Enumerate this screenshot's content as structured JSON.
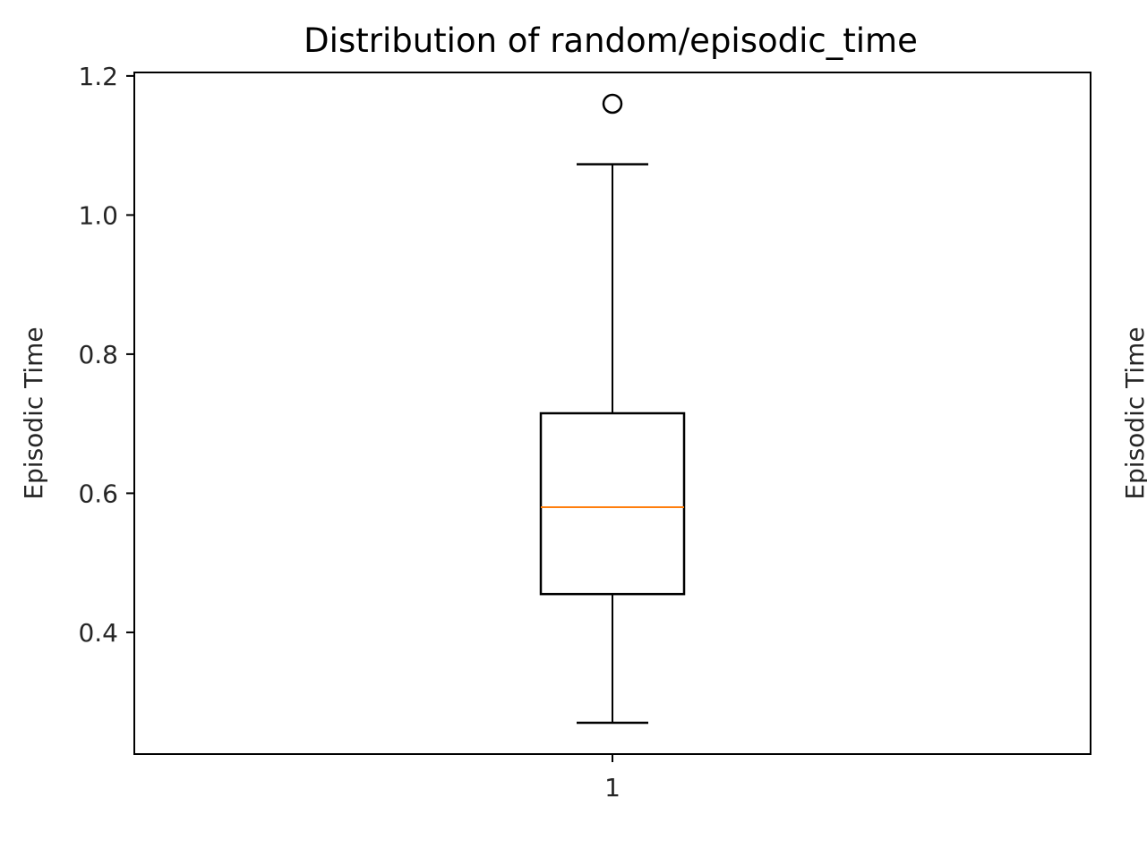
{
  "chart_data": {
    "type": "box",
    "title": "Distribution of random/episodic_time",
    "xlabel": "",
    "ylabel": "Episodic Time",
    "categories": [
      "1"
    ],
    "ylim": [
      0.225,
      1.205
    ],
    "yticks": [
      "0.4",
      "0.6",
      "0.8",
      "1.0",
      "1.2"
    ],
    "boxes": [
      {
        "category": "1",
        "whisker_low": 0.27,
        "q1": 0.455,
        "median": 0.58,
        "q3": 0.715,
        "whisker_high": 1.073,
        "outliers": [
          1.16
        ]
      }
    ],
    "grid": false,
    "median_color": "#ff7f0e",
    "line_color": "#000000",
    "partial_neighbor_ylabel": "Episodic Time"
  }
}
